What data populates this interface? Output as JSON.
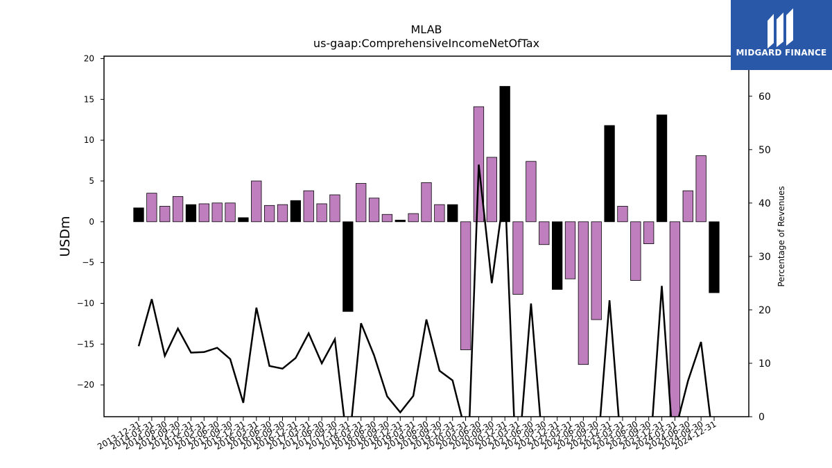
{
  "logo": {
    "text": "MIDGARD FINANCE",
    "background": "#2a58a8"
  },
  "chart_data": {
    "type": "bar",
    "title": "MLAB",
    "subtitle": "us-gaap:ComprehensiveIncomeNetOfTax",
    "ylabel": "USDm",
    "y2label": "Percentage of Revenues",
    "ylim": [
      -23.9,
      20.3
    ],
    "y2lim": [
      0,
      67.5
    ],
    "yticks": [
      -20,
      -15,
      -10,
      -5,
      0,
      5,
      10,
      15,
      20
    ],
    "y2ticks": [
      0,
      10,
      20,
      30,
      40,
      50,
      60
    ],
    "colors": {
      "quarterly": "#bf7fbf",
      "annual": "#000000",
      "line": "#000000"
    },
    "categories": [
      "2013-12-31",
      "2014-03-31",
      "2014-06-30",
      "2014-09-30",
      "2014-12-31",
      "2015-03-31",
      "2015-06-30",
      "2015-09-30",
      "2015-12-31",
      "2016-03-31",
      "2016-06-30",
      "2016-09-30",
      "2016-12-31",
      "2017-03-31",
      "2017-06-30",
      "2017-09-30",
      "2017-12-31",
      "2018-03-31",
      "2018-06-30",
      "2018-09-30",
      "2018-12-31",
      "2019-03-31",
      "2019-06-30",
      "2019-09-30",
      "2019-12-31",
      "2020-03-31",
      "2020-06-30",
      "2020-09-30",
      "2020-12-31",
      "2021-03-31",
      "2021-06-30",
      "2021-09-30",
      "2021-12-31",
      "2022-03-31",
      "2022-06-30",
      "2022-09-30",
      "2022-12-31",
      "2023-03-31",
      "2023-06-30",
      "2023-09-30",
      "2023-12-31",
      "2024-03-31",
      "2024-06-30",
      "2024-09-30",
      "2024-12-31"
    ],
    "values": [
      1.7,
      3.5,
      1.9,
      3.1,
      2.1,
      2.2,
      2.3,
      2.3,
      0.5,
      5.0,
      2.0,
      2.1,
      2.6,
      3.8,
      2.2,
      3.3,
      -11.0,
      4.7,
      2.9,
      0.9,
      0.2,
      1.0,
      4.8,
      2.1,
      2.1,
      -15.7,
      14.1,
      7.9,
      16.6,
      -8.9,
      7.4,
      -2.8,
      -8.3,
      -7.0,
      -17.5,
      -12.0,
      11.8,
      1.9,
      -7.2,
      -2.7,
      13.1,
      -23.9,
      3.8,
      8.1,
      -8.7
    ],
    "annual": [
      true,
      false,
      false,
      false,
      true,
      false,
      false,
      false,
      true,
      false,
      false,
      false,
      true,
      false,
      false,
      false,
      true,
      false,
      false,
      false,
      true,
      false,
      false,
      false,
      true,
      false,
      false,
      false,
      true,
      false,
      false,
      false,
      true,
      false,
      false,
      false,
      true,
      false,
      false,
      false,
      true,
      false,
      false,
      false,
      true
    ],
    "pct_of_revenues": [
      13.2,
      22.0,
      11.4,
      16.5,
      12.0,
      12.1,
      12.9,
      10.8,
      2.6,
      20.4,
      9.5,
      9.0,
      11.0,
      15.6,
      10.0,
      14.5,
      null,
      17.5,
      11.5,
      3.8,
      0.8,
      3.9,
      18.2,
      8.6,
      6.8,
      null,
      47.2,
      25.0,
      43.0,
      null,
      21.2,
      null,
      null,
      null,
      null,
      null,
      21.8,
      null,
      null,
      null,
      24.5,
      null,
      6.7,
      14.0,
      null
    ]
  }
}
